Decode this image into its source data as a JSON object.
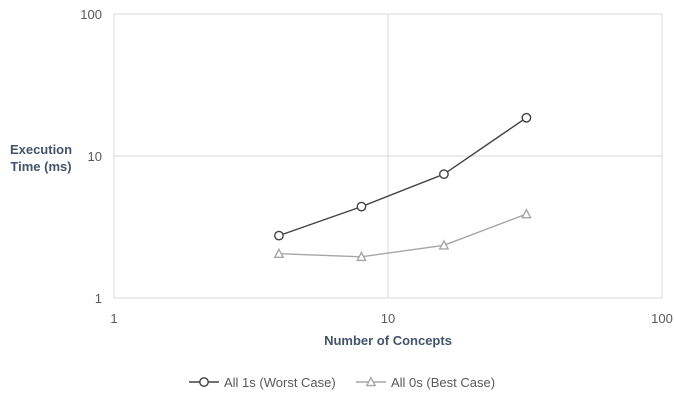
{
  "chart_data": {
    "type": "line",
    "title": "",
    "xlabel": "Number of Concepts",
    "ylabel": [
      "Execution",
      "Time (ms)"
    ],
    "x_scale": "log",
    "y_scale": "log",
    "xlim": [
      1,
      100
    ],
    "ylim": [
      1,
      100
    ],
    "x_ticks": [
      "1",
      "10",
      "100"
    ],
    "y_ticks": [
      "1",
      "10",
      "100"
    ],
    "grid": true,
    "legend_position": "bottom",
    "series": [
      {
        "name": "All 1s (Worst Case)",
        "marker": "circle",
        "color": "#404040",
        "x": [
          4,
          8,
          16,
          32
        ],
        "y": [
          2.75,
          4.4,
          7.45,
          18.6
        ]
      },
      {
        "name": "All 0s (Best Case)",
        "marker": "triangle",
        "color": "#a6a6a6",
        "x": [
          4,
          8,
          16,
          32
        ],
        "y": [
          2.05,
          1.95,
          2.35,
          3.9
        ]
      }
    ]
  }
}
